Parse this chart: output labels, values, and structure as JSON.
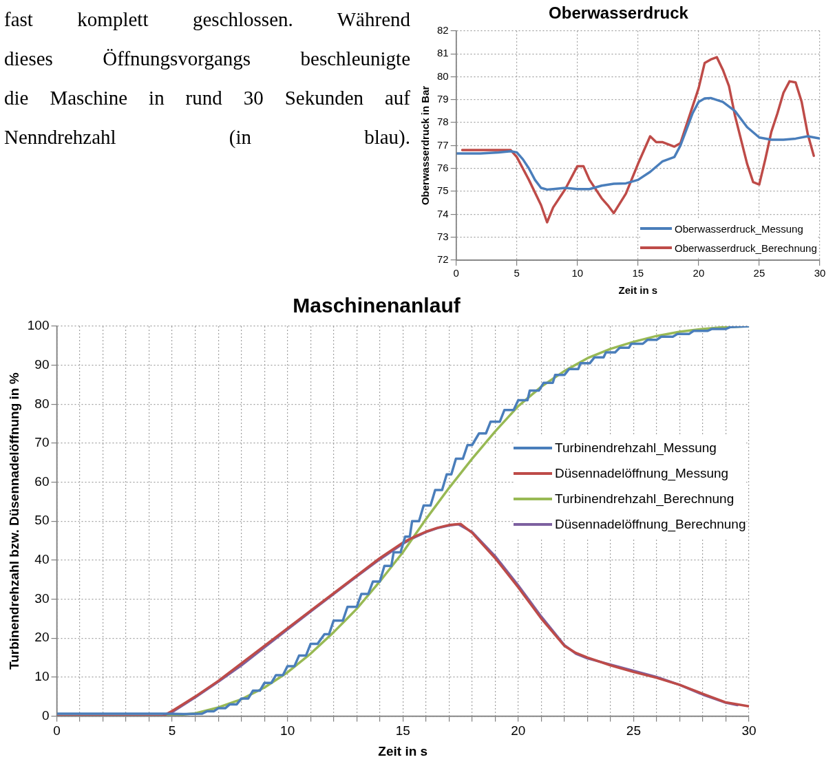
{
  "chart_data": [
    {
      "type": "other",
      "annotations": [
        "fast komplett geschlossen. Während",
        "dieses Öffnungsvorgangs beschleunigte",
        "die Maschine in rund 30 Sekunden auf",
        "Nenndrehzahl (in blau)."
      ]
    },
    {
      "type": "line",
      "title": "Oberwasserdruck",
      "xlabel": "Zeit in s",
      "ylabel": "Oberwasserdruck in Bar",
      "xlim": [
        0,
        30
      ],
      "xticks": [
        0,
        5,
        10,
        15,
        20,
        25,
        30
      ],
      "ylim": [
        72,
        82
      ],
      "yticks": [
        72,
        73,
        74,
        75,
        76,
        77,
        78,
        79,
        80,
        81,
        82
      ],
      "grid": true,
      "legend": "bottom right",
      "line_style": "solid",
      "marker": "none",
      "series": [
        {
          "name": "Oberwasserdruck_Messung",
          "color": "#4a7ebb",
          "x": [
            0,
            2,
            3.5,
            4.5,
            5,
            5.5,
            6,
            6.5,
            7,
            7.5,
            8,
            9,
            10,
            11,
            12,
            13,
            14,
            15,
            16,
            17,
            18,
            18.5,
            19,
            19.5,
            20,
            20.5,
            21,
            22,
            23,
            24,
            25,
            26,
            27,
            28,
            29,
            30
          ],
          "values": [
            76.65,
            76.65,
            76.7,
            76.75,
            76.7,
            76.4,
            76.0,
            75.5,
            75.15,
            75.08,
            75.1,
            75.15,
            75.1,
            75.1,
            75.25,
            75.33,
            75.35,
            75.5,
            75.85,
            76.3,
            76.5,
            77.0,
            77.7,
            78.4,
            78.9,
            79.05,
            79.07,
            78.9,
            78.5,
            77.8,
            77.35,
            77.25,
            77.25,
            77.3,
            77.4,
            77.3
          ]
        },
        {
          "name": "Oberwasserdruck_Berechnung",
          "color": "#be4b48",
          "x": [
            0.5,
            4.5,
            5,
            6,
            7,
            7.5,
            8,
            9,
            10,
            10.5,
            11,
            12,
            12.5,
            13,
            14,
            15,
            15.5,
            16,
            16.5,
            17,
            18,
            18.5,
            19,
            20,
            20.5,
            21,
            21.5,
            22,
            22.5,
            23,
            24,
            24.5,
            25,
            25.5,
            26,
            26.5,
            27,
            27.5,
            28,
            28.5,
            29,
            29.5
          ],
          "values": [
            76.8,
            76.8,
            76.5,
            75.5,
            74.4,
            73.65,
            74.3,
            75.1,
            76.1,
            76.1,
            75.5,
            74.7,
            74.4,
            74.05,
            74.9,
            76.2,
            76.8,
            77.4,
            77.15,
            77.15,
            76.95,
            77.1,
            77.9,
            79.5,
            80.6,
            80.75,
            80.85,
            80.3,
            79.6,
            78.3,
            76.2,
            75.4,
            75.3,
            76.4,
            77.6,
            78.4,
            79.3,
            79.8,
            79.75,
            78.9,
            77.5,
            76.55
          ]
        }
      ]
    },
    {
      "type": "line",
      "title": "Maschinenanlauf",
      "xlabel": "Zeit in s",
      "ylabel": "Turbinendrehzahl bzw. Düsennadelöffnung in %",
      "xlim": [
        0,
        30
      ],
      "xticks": [
        0,
        {
          "value": 1,
          "label": null
        },
        {
          "value": 2,
          "label": null
        },
        {
          "value": 3,
          "label": null
        },
        {
          "value": 4,
          "label": null
        },
        5,
        {
          "value": 6,
          "label": null
        },
        {
          "value": 7,
          "label": null
        },
        {
          "value": 8,
          "label": null
        },
        {
          "value": 9,
          "label": null
        },
        10,
        {
          "value": 11,
          "label": null
        },
        {
          "value": 12,
          "label": null
        },
        {
          "value": 13,
          "label": null
        },
        {
          "value": 14,
          "label": null
        },
        15,
        {
          "value": 16,
          "label": null
        },
        {
          "value": 17,
          "label": null
        },
        {
          "value": 18,
          "label": null
        },
        {
          "value": 19,
          "label": null
        },
        20,
        {
          "value": 21,
          "label": null
        },
        {
          "value": 22,
          "label": null
        },
        {
          "value": 23,
          "label": null
        },
        {
          "value": 24,
          "label": null
        },
        25,
        {
          "value": 26,
          "label": null
        },
        {
          "value": 27,
          "label": null
        },
        {
          "value": 28,
          "label": null
        },
        {
          "value": 29,
          "label": null
        },
        30
      ],
      "ylim": [
        0,
        100
      ],
      "yticks": [
        0,
        10,
        20,
        30,
        40,
        50,
        60,
        70,
        80,
        90,
        100
      ],
      "grid": true,
      "legend": "right",
      "line_style": "solid",
      "marker": "none",
      "series": [
        {
          "name": "Turbinendrehzahl_Messung",
          "color": "#4a7ebb",
          "x": [
            0,
            4.8,
            5.5,
            6.3,
            6.5,
            6.8,
            7.0,
            7.3,
            7.5,
            7.8,
            8.0,
            8.3,
            8.5,
            8.8,
            9.0,
            9.3,
            9.5,
            9.8,
            10.0,
            10.3,
            10.5,
            10.8,
            11.0,
            11.3,
            11.6,
            11.8,
            12.0,
            12.4,
            12.6,
            13.0,
            13.2,
            13.5,
            13.7,
            14.0,
            14.2,
            14.5,
            14.6,
            14.9,
            15.1,
            15.3,
            15.4,
            15.7,
            15.9,
            16.2,
            16.4,
            16.7,
            16.9,
            17.1,
            17.3,
            17.6,
            17.8,
            18.0,
            18.3,
            18.6,
            18.8,
            19.2,
            19.4,
            19.8,
            20.0,
            20.4,
            20.5,
            20.9,
            21.1,
            21.5,
            21.6,
            22.0,
            22.2,
            22.6,
            22.7,
            23.1,
            23.3,
            23.7,
            23.8,
            24.2,
            24.4,
            24.8,
            24.9,
            25.4,
            25.6,
            26.0,
            26.2,
            26.7,
            26.9,
            27.4,
            27.6,
            28.2,
            28.4,
            29.0,
            29.2,
            30
          ],
          "values": [
            0.6,
            0.6,
            0.5,
            0.6,
            1.2,
            1.2,
            2,
            2,
            3,
            3,
            4.5,
            4.5,
            6.5,
            6.5,
            8.5,
            8.5,
            10.5,
            10.5,
            12.8,
            12.8,
            15.5,
            15.5,
            18.5,
            18.5,
            21,
            21,
            24.5,
            24.5,
            28,
            28,
            31.3,
            31.3,
            34.5,
            34.5,
            38.5,
            38.5,
            42,
            42,
            46,
            46,
            50,
            50,
            54,
            54,
            58,
            58,
            62,
            62,
            66,
            66,
            69.5,
            69.5,
            72.5,
            72.5,
            75.5,
            75.5,
            78.5,
            78.5,
            81,
            81,
            83.5,
            83.5,
            85.5,
            85.5,
            87.5,
            87.5,
            89,
            89,
            90.5,
            90.5,
            92,
            92,
            93.3,
            93.3,
            94.5,
            94.5,
            95.5,
            95.5,
            96.5,
            96.5,
            97.3,
            97.3,
            98,
            98,
            98.8,
            98.8,
            99.3,
            99.3,
            99.8,
            100
          ]
        },
        {
          "name": "Düsennadelöffnung_Messung",
          "color": "#be4b48",
          "x": [
            0,
            4.6,
            5,
            6,
            7,
            8,
            9,
            10,
            11,
            12,
            13,
            14,
            15,
            15.5,
            16,
            16.5,
            17,
            17.5,
            18,
            19,
            20,
            21,
            22,
            22.5,
            23,
            24,
            25,
            26,
            27,
            28,
            29,
            30
          ],
          "values": [
            0,
            0,
            1.3,
            5,
            9,
            13.5,
            18,
            22.5,
            27,
            31.5,
            36,
            40.5,
            44.5,
            46,
            47.3,
            48.3,
            49,
            49.3,
            47,
            40.5,
            33,
            25,
            18,
            16.2,
            15,
            13,
            11.3,
            9.8,
            8,
            5.7,
            3.5,
            2.5
          ]
        },
        {
          "name": "Turbinendrehzahl_Berechnung",
          "color": "#98b954",
          "x": [
            0,
            4.8,
            5,
            6,
            7,
            8,
            9,
            10,
            11,
            12,
            13,
            14,
            15,
            16,
            17,
            18,
            19,
            20,
            21,
            22,
            23,
            24,
            25,
            26,
            27,
            28,
            29,
            30
          ],
          "values": [
            0,
            0,
            0.1,
            0.7,
            2.2,
            4.3,
            7.3,
            11.2,
            16,
            21.5,
            27.5,
            34.5,
            42,
            50.5,
            58.5,
            66,
            73,
            79.5,
            84.5,
            88.5,
            91.8,
            94.2,
            96,
            97.5,
            98.6,
            99.3,
            99.8,
            100
          ]
        },
        {
          "name": "Düsennadelöffnung_Berechnung",
          "color": "#7d60a0",
          "x": [
            0,
            4.7,
            5,
            6,
            7,
            8,
            9,
            10,
            11,
            12,
            13,
            14,
            15,
            15.5,
            16,
            16.5,
            17,
            17.4,
            18,
            19,
            20,
            21,
            22,
            22.5,
            23,
            24,
            25,
            26,
            27,
            28,
            29,
            29.5
          ],
          "values": [
            0,
            0,
            1,
            4.8,
            8.8,
            13,
            17.6,
            22.2,
            26.8,
            31.3,
            35.8,
            40.2,
            44.2,
            45.8,
            47.2,
            48.2,
            48.9,
            49.2,
            47.2,
            41,
            33.5,
            25.5,
            18.2,
            16,
            14.8,
            13.2,
            11.6,
            10,
            8,
            5.5,
            3.4,
            2.8
          ]
        }
      ]
    }
  ]
}
